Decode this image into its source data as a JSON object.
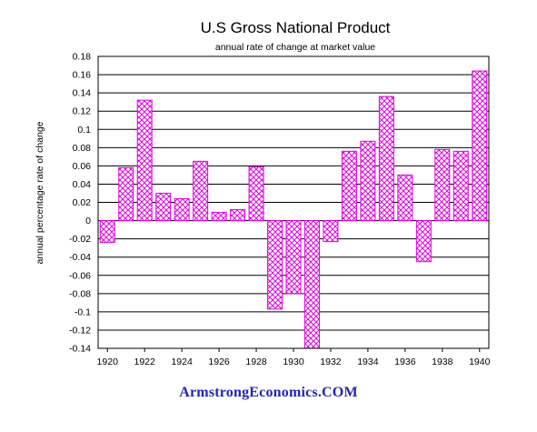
{
  "chart_data": {
    "type": "bar",
    "title": "U.S Gross National Product",
    "subtitle": "annual rate of change at market value",
    "xlabel": "",
    "ylabel": "annual percentage rate of change",
    "categories": [
      "1920",
      "1921",
      "1922",
      "1923",
      "1924",
      "1925",
      "1926",
      "1927",
      "1928",
      "1929",
      "1930",
      "1931",
      "1932",
      "1933",
      "1934",
      "1935",
      "1936",
      "1937",
      "1938",
      "1939",
      "1940"
    ],
    "values": [
      -0.024,
      0.058,
      0.132,
      0.03,
      0.024,
      0.065,
      0.009,
      0.012,
      0.059,
      -0.097,
      -0.08,
      -0.14,
      -0.023,
      0.076,
      0.087,
      0.136,
      0.05,
      -0.045,
      0.078,
      0.076,
      0.164
    ],
    "ylim": [
      -0.14,
      0.18
    ],
    "yticks": [
      "0.18",
      "0.16",
      "0.14",
      "0.12",
      "0.1",
      "0.08",
      "0.06",
      "0.04",
      "0.02",
      "0",
      "-0.02",
      "-0.04",
      "-0.06",
      "-0.08",
      "-0.1",
      "-0.12",
      "-0.14"
    ],
    "xticks": [
      "1920",
      "1922",
      "1924",
      "1926",
      "1928",
      "1930",
      "1932",
      "1934",
      "1936",
      "1938",
      "1940"
    ],
    "grid": "horizontal",
    "bar_color": "#e000e0",
    "bar_fill": "crosshatch"
  },
  "watermark": "ArmstrongEconomics.COM",
  "colors": {
    "watermark": "#2323b8",
    "bars": "#e000e0"
  }
}
